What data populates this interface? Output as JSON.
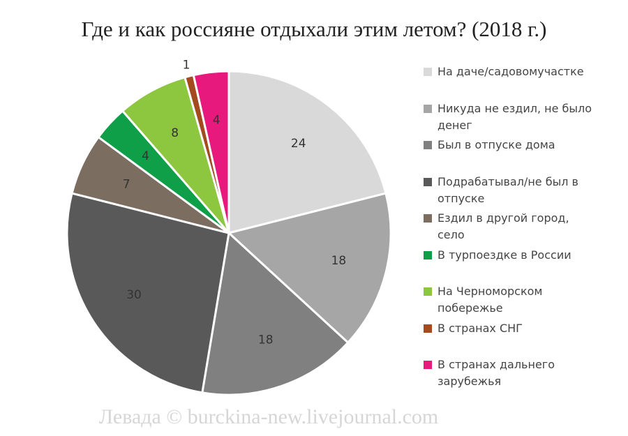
{
  "chart_data": {
    "type": "pie",
    "title": "Где и как россияне отдыхали этим летом? (2018 г.)",
    "categories": [
      "На даче/садовомучастке",
      "Никуда не ездил, не было денег",
      "Был в отпуске дома",
      "Подрабатывал/не был в отпуске",
      "Ездил в другой город, село",
      "В турпоездке в России",
      "На Черноморском побережье",
      "В странах СНГ",
      "В странах дальнего зарубежья"
    ],
    "values": [
      24,
      18,
      18,
      30,
      7,
      4,
      8,
      1,
      4
    ],
    "colors": [
      "#d9d9d9",
      "#a6a6a6",
      "#808080",
      "#595959",
      "#7b6d5f",
      "#0e9f48",
      "#8dc63f",
      "#a34a1f",
      "#e8197c"
    ],
    "legend": "right",
    "watermark": "Левада © burckina-new.livejournal.com"
  }
}
